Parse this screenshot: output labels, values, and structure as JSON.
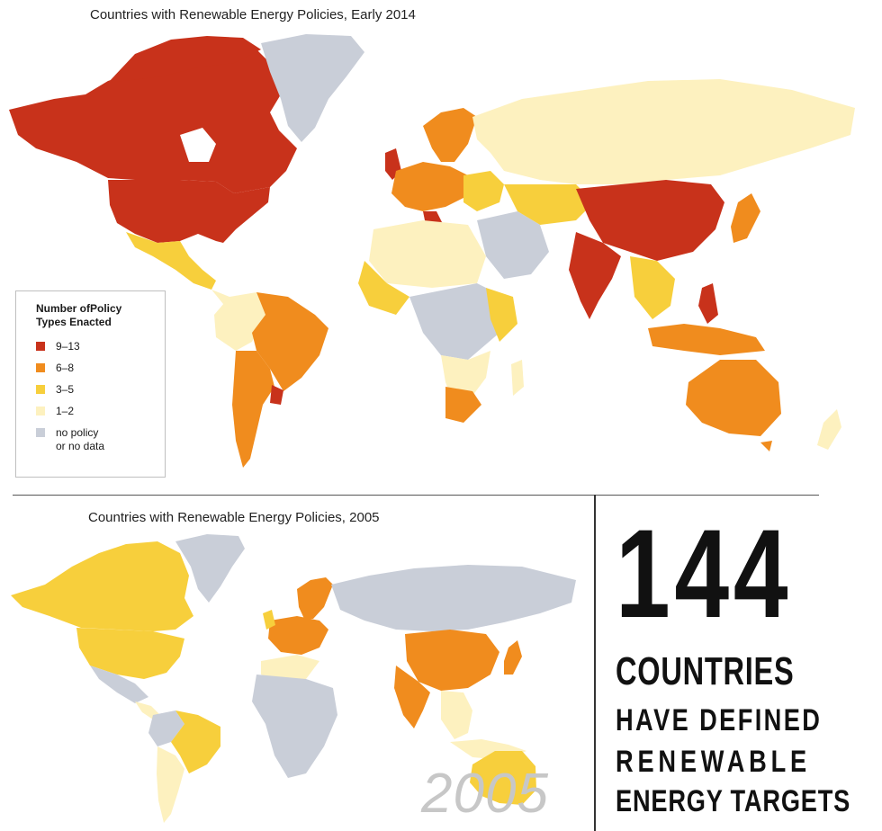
{
  "titles": {
    "top": "Countries with Renewable Energy Policies, Early 2014",
    "bottom": "Countries with Renewable Energy Policies, 2005"
  },
  "legend": {
    "title": "Number ofPolicy Types Enacted",
    "items": [
      {
        "label": "9–13",
        "color": "#c8321b"
      },
      {
        "label": "6–8",
        "color": "#f08c1e"
      },
      {
        "label": "3–5",
        "color": "#f7cf3c"
      },
      {
        "label": "1–2",
        "color": "#fdf1bf"
      },
      {
        "label_line1": "no policy",
        "label_line2": "or no data",
        "color": "#c9ced8"
      }
    ]
  },
  "watermark_year": "2005",
  "stat": {
    "number": "144",
    "line1": "COUNTRIES",
    "line2": "HAVE DEFINED",
    "line3": "RENEWABLE",
    "line4": "ENERGY TARGETS"
  }
}
